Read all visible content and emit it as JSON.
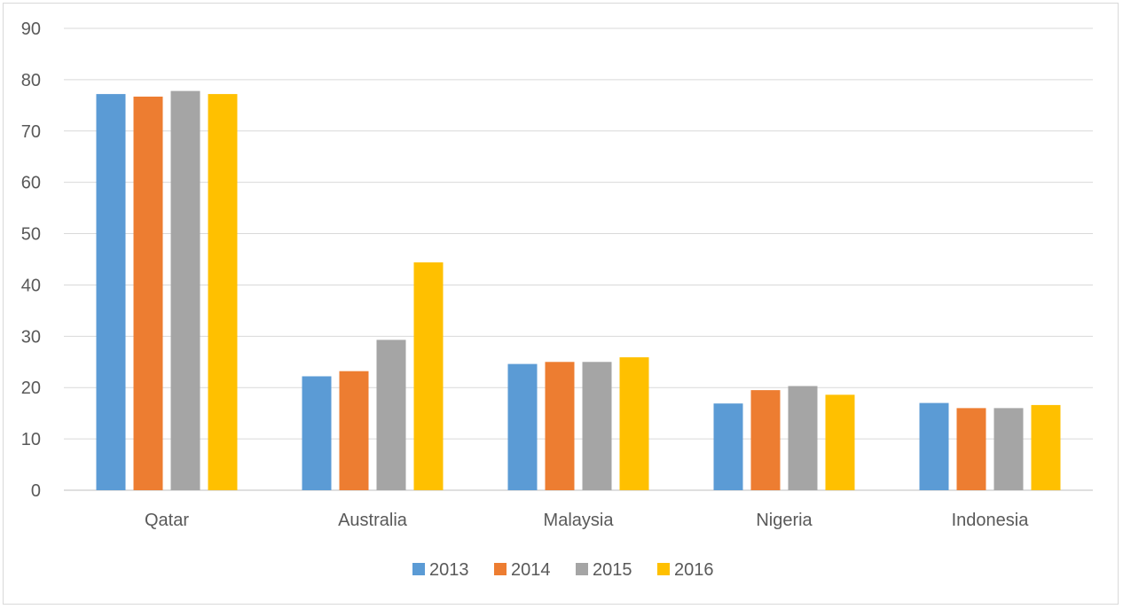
{
  "chart_data": {
    "type": "bar",
    "title": "",
    "xlabel": "",
    "ylabel": "",
    "ylim": [
      0,
      90
    ],
    "yticks": [
      0,
      10,
      20,
      30,
      40,
      50,
      60,
      70,
      80,
      90
    ],
    "grid": true,
    "legend_position": "bottom",
    "categories": [
      "Qatar",
      "Australia",
      "Malaysia",
      "Nigeria",
      "Indonesia"
    ],
    "series": [
      {
        "name": "2013",
        "color": "#5b9bd5",
        "values": [
          77.2,
          22.2,
          24.6,
          16.9,
          17.0
        ]
      },
      {
        "name": "2014",
        "color": "#ed7d31",
        "values": [
          76.7,
          23.2,
          25.0,
          19.5,
          16.0
        ]
      },
      {
        "name": "2015",
        "color": "#a5a5a5",
        "values": [
          77.8,
          29.3,
          25.0,
          20.3,
          16.0
        ]
      },
      {
        "name": "2016",
        "color": "#ffc000",
        "values": [
          77.2,
          44.4,
          25.9,
          18.6,
          16.6
        ]
      }
    ]
  }
}
